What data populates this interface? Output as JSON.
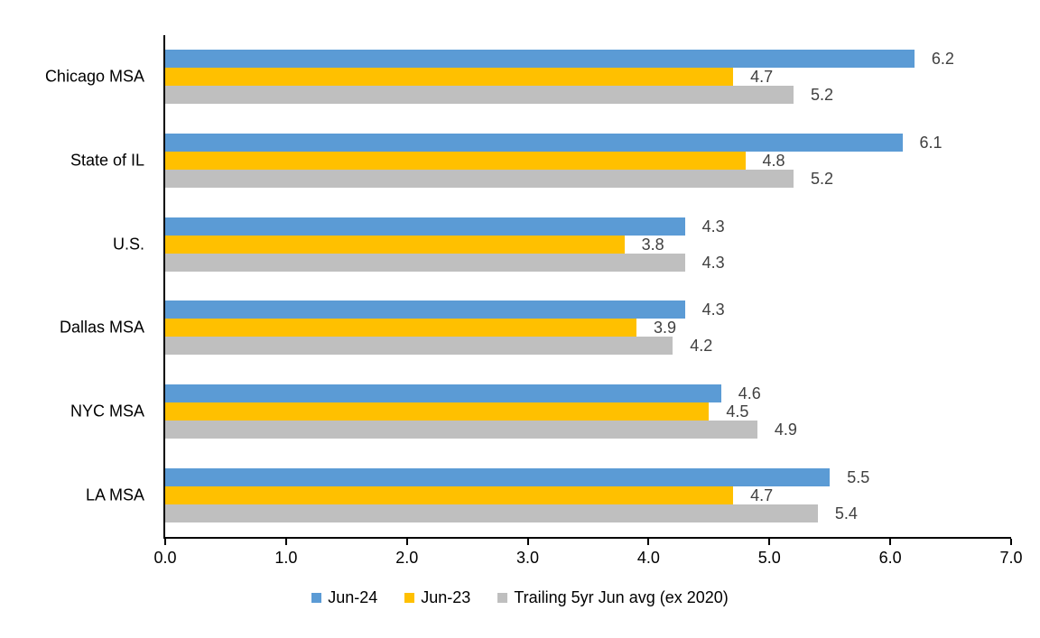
{
  "chart_data": {
    "type": "bar",
    "orientation": "horizontal",
    "title": "",
    "xlabel": "",
    "ylabel": "",
    "categories": [
      "Chicago MSA",
      "State of IL",
      "U.S.",
      "Dallas MSA",
      "NYC MSA",
      "LA MSA"
    ],
    "series": [
      {
        "name": "Jun-24",
        "color": "#5B9BD5",
        "values": [
          6.2,
          6.1,
          4.3,
          4.3,
          4.6,
          5.5
        ]
      },
      {
        "name": "Jun-23",
        "color": "#FFC000",
        "values": [
          4.7,
          4.8,
          3.8,
          3.9,
          4.5,
          4.7
        ]
      },
      {
        "name": "Trailing 5yr Jun avg (ex 2020)",
        "color": "#BFBFBF",
        "values": [
          5.2,
          5.2,
          4.3,
          4.2,
          4.9,
          5.4
        ]
      }
    ],
    "value_labels": [
      "6.2",
      "6.1",
      "4.3",
      "4.3",
      "4.6",
      "5.5",
      "4.7",
      "4.8",
      "3.8",
      "3.9",
      "4.5",
      "4.7",
      "5.2",
      "5.2",
      "4.3",
      "4.2",
      "4.9",
      "5.4"
    ],
    "xlim": [
      0,
      7
    ],
    "xticks": [
      "0.0",
      "1.0",
      "2.0",
      "3.0",
      "4.0",
      "5.0",
      "6.0",
      "7.0"
    ],
    "grid": false,
    "legend_position": "bottom"
  },
  "colors": {
    "background": "#FFFFFF",
    "axis": "#000000",
    "value_label": "#404040",
    "category_label": "#000000"
  }
}
